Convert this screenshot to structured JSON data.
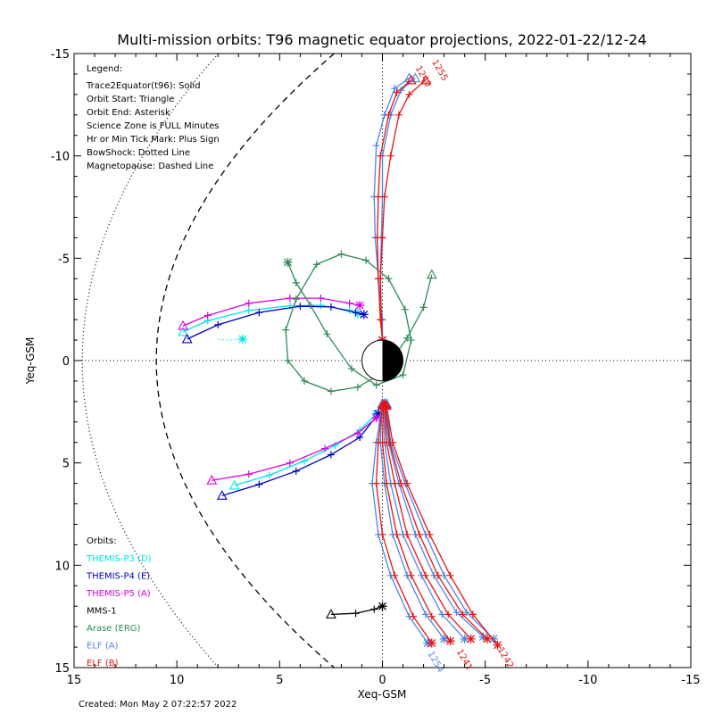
{
  "chart_data": {
    "type": "line",
    "title": "Multi-mission orbits: T96 magnetic equator projections, 2022-01-22/12-24",
    "xlabel": "Xeq-GSM",
    "ylabel": "Yeq-GSM",
    "xlim": [
      15,
      -15
    ],
    "ylim": [
      15,
      -15
    ],
    "x_ticks": [
      15,
      10,
      5,
      0,
      -5,
      -10,
      -15
    ],
    "y_ticks": [
      -15,
      -10,
      -5,
      0,
      5,
      10,
      15
    ],
    "x_tick_labels": [
      "15",
      "10",
      "5",
      "0",
      "-5",
      "-10",
      "-15"
    ],
    "y_tick_labels": [
      "-15",
      "-10",
      "-5",
      "0",
      "5",
      "10",
      "15"
    ],
    "grid": false,
    "zero_lines": "dotted",
    "legend_placement": "top-left",
    "legend": {
      "heading": "Legend:",
      "lines": [
        "Trace2Equator(t96): Solid",
        "Orbit Start: Triangle",
        "Orbit End: Asterisk",
        "Science Zone is FULL Minutes",
        "Hr or Min Tick Mark: Plus Sign",
        "BowShock: Dotted Line",
        "Magnetopause: Dashed Line"
      ]
    },
    "orbits_heading": "Orbits:",
    "orbits": [
      {
        "name": "THEMIS-P3 (D)",
        "color": "#00e5e5"
      },
      {
        "name": "THEMIS-P4 (E)",
        "color": "#0000c0"
      },
      {
        "name": "THEMIS-P5 (A)",
        "color": "#e000e0"
      },
      {
        "name": "MMS-1",
        "color": "#000000"
      },
      {
        "name": "Arase (ERG)",
        "color": "#2e8b57"
      },
      {
        "name": "ELF (A)",
        "color": "#4f86e8"
      },
      {
        "name": "ELF (B)",
        "color": "#e41414"
      }
    ],
    "footer": "Created: Mon May  2 07:22:57 2022",
    "series": [
      {
        "name": "THEMIS-P3 (D)",
        "color": "#00e5e5",
        "style": "solid",
        "points": [
          [
            9.7,
            -1.4
          ],
          [
            8.5,
            -1.95
          ],
          [
            6.5,
            -2.45
          ],
          [
            4.5,
            -2.68
          ],
          [
            3.0,
            -2.7
          ],
          [
            1.6,
            -2.45
          ],
          [
            1.2,
            -2.3
          ]
        ]
      },
      {
        "name": "THEMIS-P3 (D)",
        "color": "#00e5e5",
        "style": "solid",
        "points": [
          [
            7.2,
            6.1
          ],
          [
            5.5,
            5.6
          ],
          [
            3.8,
            4.9
          ],
          [
            2.3,
            4.15
          ],
          [
            1.1,
            3.4
          ],
          [
            0.3,
            2.6
          ]
        ]
      },
      {
        "name": "THEMIS-P3 (D)",
        "color": "#00e5e5",
        "style": "dotted",
        "points": [
          [
            6.8,
            -1.05
          ],
          [
            7.5,
            -1.0
          ],
          [
            8.0,
            -1.05
          ]
        ]
      },
      {
        "name": "THEMIS-P4 (E)",
        "color": "#0000c0",
        "style": "solid",
        "points": [
          [
            9.5,
            -1.05
          ],
          [
            8.0,
            -1.75
          ],
          [
            6.0,
            -2.35
          ],
          [
            4.0,
            -2.65
          ],
          [
            2.5,
            -2.62
          ],
          [
            1.3,
            -2.35
          ],
          [
            0.9,
            -2.25
          ]
        ]
      },
      {
        "name": "THEMIS-P4 (E)",
        "color": "#0000c0",
        "style": "solid",
        "points": [
          [
            7.8,
            6.6
          ],
          [
            6.0,
            6.05
          ],
          [
            4.2,
            5.4
          ],
          [
            2.5,
            4.6
          ],
          [
            1.1,
            3.75
          ],
          [
            0.2,
            2.6
          ]
        ]
      },
      {
        "name": "THEMIS-P5 (A)",
        "color": "#e000e0",
        "style": "solid",
        "points": [
          [
            9.7,
            -1.7
          ],
          [
            8.5,
            -2.2
          ],
          [
            6.5,
            -2.8
          ],
          [
            4.5,
            -3.05
          ],
          [
            3.0,
            -3.05
          ],
          [
            1.6,
            -2.8
          ],
          [
            1.1,
            -2.7
          ]
        ]
      },
      {
        "name": "THEMIS-P5 (A)",
        "color": "#e000e0",
        "style": "solid",
        "points": [
          [
            8.3,
            5.85
          ],
          [
            6.5,
            5.55
          ],
          [
            4.5,
            5.0
          ],
          [
            2.8,
            4.3
          ],
          [
            1.2,
            3.55
          ],
          [
            0.3,
            2.8
          ]
        ]
      },
      {
        "name": "MMS-1",
        "color": "#000000",
        "style": "solid",
        "points": [
          [
            2.5,
            12.4
          ],
          [
            1.3,
            12.35
          ],
          [
            0.4,
            12.15
          ],
          [
            0.0,
            12.0
          ]
        ]
      },
      {
        "name": "Arase (ERG)",
        "color": "#2e8b57",
        "style": "solid",
        "points": [
          [
            -2.4,
            -4.2
          ],
          [
            -2.0,
            -2.6
          ],
          [
            -1.2,
            -1.1
          ],
          [
            0.0,
            0.6
          ],
          [
            1.2,
            1.3
          ],
          [
            2.5,
            1.5
          ],
          [
            3.8,
            1.0
          ],
          [
            4.6,
            0.0
          ],
          [
            4.7,
            -1.5
          ],
          [
            4.2,
            -3.0
          ],
          [
            3.2,
            -4.7
          ],
          [
            2.0,
            -5.2
          ],
          [
            0.8,
            -4.9
          ],
          [
            -0.3,
            -4.0
          ],
          [
            -1.1,
            -2.5
          ],
          [
            -1.4,
            -1.0
          ],
          [
            -1.0,
            0.7
          ],
          [
            0.3,
            1.2
          ],
          [
            1.5,
            0.4
          ],
          [
            2.7,
            -1.3
          ],
          [
            3.5,
            -2.7
          ],
          [
            4.2,
            -3.8
          ],
          [
            4.6,
            -4.8
          ]
        ]
      },
      {
        "name": "ELF (A)",
        "color": "#4f86e8",
        "style": "solid",
        "points": [
          [
            -1.3,
            -13.8
          ],
          [
            -0.6,
            -13.3
          ],
          [
            -0.1,
            -12.0
          ],
          [
            0.3,
            -10.5
          ],
          [
            0.4,
            -8.0
          ],
          [
            0.35,
            -6.0
          ],
          [
            0.2,
            -4.0
          ],
          [
            0.0,
            -2.0
          ],
          [
            0.0,
            -1.0
          ]
        ]
      },
      {
        "name": "ELF (A)",
        "color": "#4f86e8",
        "style": "solid",
        "points": [
          [
            -1.6,
            -13.8
          ],
          [
            -0.9,
            -13.2
          ],
          [
            -0.4,
            -12.0
          ],
          [
            0.0,
            -10.0
          ],
          [
            0.0,
            -8.0
          ],
          [
            0.05,
            -6.0
          ],
          [
            0.1,
            -4.0
          ],
          [
            0.05,
            -2.0
          ],
          [
            0.0,
            -1.0
          ]
        ]
      },
      {
        "name": "ELF (B)",
        "color": "#e41414",
        "style": "solid",
        "points": [
          [
            -1.4,
            -13.7
          ],
          [
            -0.7,
            -13.1
          ],
          [
            -0.3,
            -12.0
          ],
          [
            0.1,
            -10.0
          ],
          [
            0.2,
            -8.0
          ],
          [
            0.25,
            -6.0
          ],
          [
            0.2,
            -4.0
          ],
          [
            0.1,
            -2.0
          ],
          [
            0.0,
            -1.0
          ]
        ]
      },
      {
        "name": "ELF (B)",
        "color": "#e41414",
        "style": "solid",
        "points": [
          [
            -2.1,
            -13.7
          ],
          [
            -1.3,
            -13.0
          ],
          [
            -0.8,
            -12.0
          ],
          [
            -0.4,
            -10.0
          ],
          [
            -0.1,
            -8.0
          ],
          [
            0.0,
            -6.0
          ],
          [
            0.1,
            -4.0
          ],
          [
            0.05,
            -2.0
          ],
          [
            0.0,
            -1.0
          ]
        ]
      },
      {
        "name": "ELF (A)",
        "color": "#4f86e8",
        "style": "solid",
        "points": [
          [
            0.0,
            2.1
          ],
          [
            0.3,
            4.0
          ],
          [
            0.5,
            6.0
          ],
          [
            0.2,
            8.5
          ],
          [
            -0.4,
            10.5
          ],
          [
            -1.3,
            12.5
          ],
          [
            -2.2,
            13.8
          ]
        ]
      },
      {
        "name": "ELF (A)",
        "color": "#4f86e8",
        "style": "solid",
        "points": [
          [
            0.0,
            2.1
          ],
          [
            0.1,
            4.0
          ],
          [
            -0.1,
            6.0
          ],
          [
            -0.5,
            8.5
          ],
          [
            -1.2,
            10.5
          ],
          [
            -2.1,
            12.4
          ],
          [
            -3.0,
            13.6
          ]
        ]
      },
      {
        "name": "ELF (A)",
        "color": "#4f86e8",
        "style": "solid",
        "points": [
          [
            -0.1,
            2.1
          ],
          [
            -0.1,
            4.0
          ],
          [
            -0.4,
            6.0
          ],
          [
            -1.0,
            8.5
          ],
          [
            -1.9,
            10.5
          ],
          [
            -2.9,
            12.4
          ],
          [
            -4.0,
            13.6
          ]
        ]
      },
      {
        "name": "ELF (A)",
        "color": "#4f86e8",
        "style": "solid",
        "points": [
          [
            -0.1,
            2.1
          ],
          [
            -0.3,
            4.0
          ],
          [
            -0.8,
            6.0
          ],
          [
            -1.6,
            8.5
          ],
          [
            -2.5,
            10.5
          ],
          [
            -3.6,
            12.3
          ],
          [
            -4.9,
            13.5
          ]
        ]
      },
      {
        "name": "ELF (A)",
        "color": "#4f86e8",
        "style": "solid",
        "points": [
          [
            -0.2,
            2.1
          ],
          [
            -0.4,
            4.0
          ],
          [
            -1.1,
            6.0
          ],
          [
            -2.1,
            8.5
          ],
          [
            -3.0,
            10.5
          ],
          [
            -4.1,
            12.3
          ],
          [
            -5.4,
            13.6
          ]
        ]
      },
      {
        "name": "ELF (B)",
        "color": "#e41414",
        "style": "solid",
        "points": [
          [
            0.0,
            2.2
          ],
          [
            0.2,
            4.0
          ],
          [
            0.3,
            6.0
          ],
          [
            0.0,
            8.5
          ],
          [
            -0.6,
            10.5
          ],
          [
            -1.5,
            12.5
          ],
          [
            -2.4,
            13.8
          ]
        ]
      },
      {
        "name": "ELF (B)",
        "color": "#e41414",
        "style": "solid",
        "points": [
          [
            -0.05,
            2.2
          ],
          [
            0.0,
            4.0
          ],
          [
            -0.2,
            6.0
          ],
          [
            -0.7,
            8.5
          ],
          [
            -1.4,
            10.5
          ],
          [
            -2.4,
            12.5
          ],
          [
            -3.3,
            13.7
          ]
        ]
      },
      {
        "name": "ELF (B)",
        "color": "#e41414",
        "style": "solid",
        "points": [
          [
            -0.1,
            2.2
          ],
          [
            -0.2,
            4.0
          ],
          [
            -0.6,
            6.0
          ],
          [
            -1.2,
            8.5
          ],
          [
            -2.1,
            10.5
          ],
          [
            -3.2,
            12.4
          ],
          [
            -4.3,
            13.6
          ]
        ]
      },
      {
        "name": "ELF (B)",
        "color": "#e41414",
        "style": "solid",
        "points": [
          [
            -0.15,
            2.2
          ],
          [
            -0.35,
            4.0
          ],
          [
            -0.9,
            6.0
          ],
          [
            -1.8,
            8.5
          ],
          [
            -2.7,
            10.5
          ],
          [
            -3.9,
            12.4
          ],
          [
            -5.1,
            13.6
          ]
        ]
      },
      {
        "name": "ELF (B)",
        "color": "#e41414",
        "style": "solid",
        "points": [
          [
            -0.2,
            2.2
          ],
          [
            -0.5,
            4.0
          ],
          [
            -1.2,
            6.0
          ],
          [
            -2.3,
            8.5
          ],
          [
            -3.3,
            10.5
          ],
          [
            -4.4,
            12.4
          ],
          [
            -5.6,
            13.9
          ]
        ]
      }
    ],
    "annotations": [
      {
        "text": "1255",
        "x": -2.4,
        "y": -14.6,
        "color": "#e41414"
      },
      {
        "text": "1240",
        "x": -1.6,
        "y": -14.3,
        "color": "#e41414"
      },
      {
        "text": "1254",
        "x": -2.2,
        "y": 14.3,
        "color": "#4f86e8"
      },
      {
        "text": "1241",
        "x": -3.6,
        "y": 14.2,
        "color": "#e41414"
      },
      {
        "text": "1242",
        "x": -5.6,
        "y": 14.1,
        "color": "#e41414"
      }
    ]
  }
}
